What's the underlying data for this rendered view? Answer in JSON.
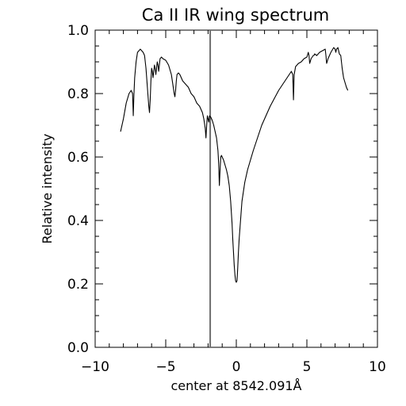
{
  "chart_data": {
    "type": "line",
    "title": "Ca II IR wing spectrum",
    "xlabel": "center at 8542.091Å",
    "ylabel": "Relative intensity",
    "xlim": [
      -10,
      10
    ],
    "ylim": [
      0,
      1
    ],
    "x_ticks": [
      -10,
      -5,
      0,
      5,
      10
    ],
    "x_tick_labels": [
      "−10",
      "−5",
      "0",
      "5",
      "10"
    ],
    "y_ticks": [
      0,
      0.2,
      0.4,
      0.6,
      0.8,
      1.0
    ],
    "y_tick_labels": [
      "0.0",
      "0.2",
      "0.4",
      "0.6",
      "0.8",
      "1.0"
    ],
    "x_minor_step": 1,
    "y_minor_step": 0.05,
    "grid": false,
    "colors": {
      "line": "#000000",
      "marker_line": "#6e6e6e",
      "axes": "#000000"
    },
    "vertical_marker": {
      "x": -1.85
    },
    "series": [
      {
        "x": [
          -8.2,
          -8.0,
          -7.8,
          -7.6,
          -7.45,
          -7.35,
          -7.32,
          -7.3,
          -7.25,
          -7.2,
          -7.1,
          -7.0,
          -6.9,
          -6.8,
          -6.7,
          -6.6,
          -6.5,
          -6.4,
          -6.3,
          -6.2,
          -6.15,
          -6.1,
          -6.05,
          -6.0,
          -5.95,
          -5.9,
          -5.85,
          -5.8,
          -5.75,
          -5.7,
          -5.65,
          -5.6,
          -5.55,
          -5.5,
          -5.45,
          -5.4,
          -5.3,
          -5.2,
          -5.0,
          -4.8,
          -4.6,
          -4.5,
          -4.4,
          -4.35,
          -4.3,
          -4.25,
          -4.2,
          -4.1,
          -4.0,
          -3.8,
          -3.6,
          -3.4,
          -3.2,
          -3.0,
          -2.8,
          -2.6,
          -2.4,
          -2.3,
          -2.2,
          -2.15,
          -2.1,
          -2.05,
          -2.0,
          -1.95,
          -1.9,
          -1.8,
          -1.7,
          -1.6,
          -1.5,
          -1.4,
          -1.3,
          -1.25,
          -1.2,
          -1.15,
          -1.1,
          -1.05,
          -1.0,
          -0.9,
          -0.8,
          -0.7,
          -0.6,
          -0.5,
          -0.4,
          -0.3,
          -0.25,
          -0.2,
          -0.15,
          -0.1,
          -0.05,
          0.0,
          0.05,
          0.1,
          0.15,
          0.2,
          0.3,
          0.4,
          0.6,
          0.8,
          1.0,
          1.2,
          1.5,
          1.8,
          2.1,
          2.4,
          2.7,
          3.0,
          3.3,
          3.6,
          3.9,
          4.0,
          4.05,
          4.1,
          4.2,
          4.4,
          4.6,
          4.8,
          5.0,
          5.1,
          5.15,
          5.2,
          5.3,
          5.45,
          5.5,
          5.55,
          5.7,
          5.9,
          6.1,
          6.3,
          6.35,
          6.4,
          6.5,
          6.7,
          6.9,
          7.0,
          7.05,
          7.1,
          7.2,
          7.3,
          7.4,
          7.5,
          7.6,
          7.7,
          7.8,
          7.9
        ],
        "y": [
          0.68,
          0.72,
          0.77,
          0.8,
          0.81,
          0.8,
          0.76,
          0.73,
          0.8,
          0.85,
          0.9,
          0.93,
          0.935,
          0.94,
          0.935,
          0.93,
          0.92,
          0.88,
          0.82,
          0.76,
          0.74,
          0.78,
          0.84,
          0.88,
          0.87,
          0.85,
          0.87,
          0.89,
          0.88,
          0.86,
          0.88,
          0.9,
          0.89,
          0.87,
          0.89,
          0.91,
          0.915,
          0.91,
          0.905,
          0.89,
          0.86,
          0.83,
          0.8,
          0.79,
          0.81,
          0.84,
          0.86,
          0.865,
          0.86,
          0.84,
          0.83,
          0.82,
          0.8,
          0.79,
          0.77,
          0.76,
          0.74,
          0.72,
          0.69,
          0.66,
          0.7,
          0.73,
          0.72,
          0.71,
          0.73,
          0.725,
          0.715,
          0.7,
          0.68,
          0.66,
          0.62,
          0.58,
          0.51,
          0.56,
          0.6,
          0.605,
          0.6,
          0.59,
          0.575,
          0.56,
          0.54,
          0.51,
          0.46,
          0.39,
          0.34,
          0.3,
          0.26,
          0.23,
          0.21,
          0.205,
          0.21,
          0.25,
          0.3,
          0.34,
          0.4,
          0.46,
          0.52,
          0.56,
          0.59,
          0.62,
          0.66,
          0.7,
          0.73,
          0.76,
          0.785,
          0.81,
          0.83,
          0.85,
          0.87,
          0.86,
          0.78,
          0.86,
          0.885,
          0.895,
          0.9,
          0.91,
          0.915,
          0.93,
          0.92,
          0.895,
          0.91,
          0.92,
          0.92,
          0.925,
          0.92,
          0.93,
          0.935,
          0.94,
          0.92,
          0.895,
          0.91,
          0.93,
          0.945,
          0.94,
          0.93,
          0.94,
          0.945,
          0.925,
          0.92,
          0.88,
          0.85,
          0.835,
          0.82,
          0.81
        ]
      }
    ]
  }
}
